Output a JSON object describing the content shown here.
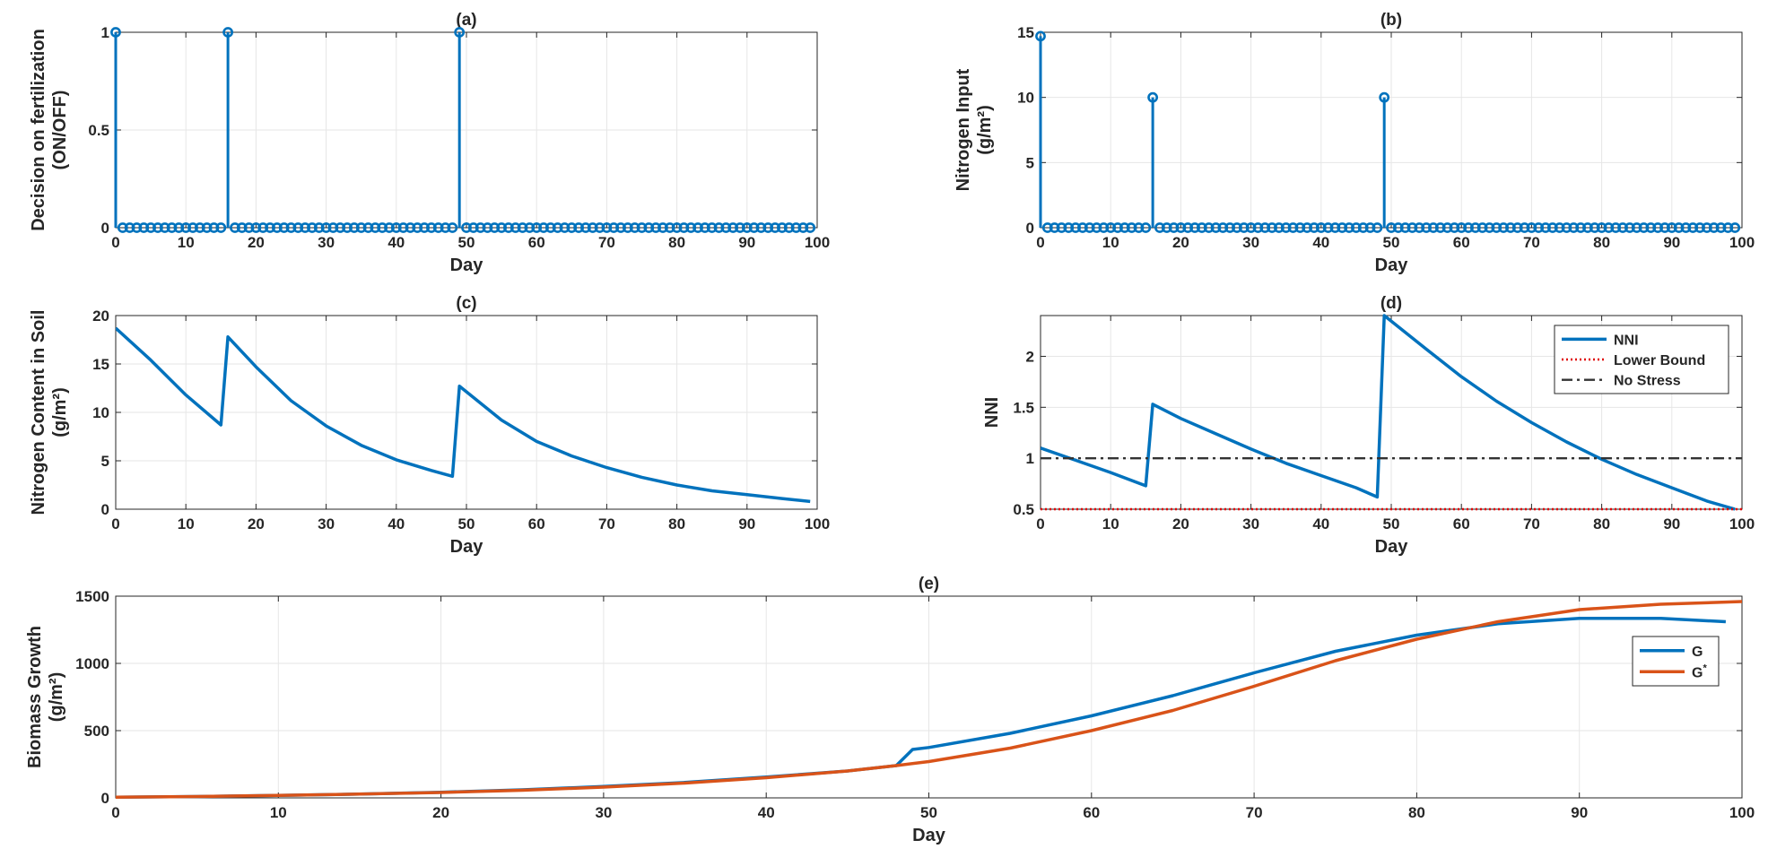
{
  "chart_data": [
    {
      "id": "a",
      "type": "stem",
      "title": "(a)",
      "xlabel": "Day",
      "ylabel": [
        "Decision on fertilization",
        "(ON/OFF)"
      ],
      "xlim": [
        0,
        100
      ],
      "ylim": [
        0,
        1
      ],
      "xticks": [
        0,
        10,
        20,
        30,
        40,
        50,
        60,
        70,
        80,
        90,
        100
      ],
      "yticks": [
        0,
        0.5,
        1
      ],
      "grid": true,
      "color": "#0072BD",
      "days": [
        0,
        1,
        2,
        3,
        4,
        5,
        6,
        7,
        8,
        9,
        10,
        11,
        12,
        13,
        14,
        15,
        16,
        17,
        18,
        19,
        20,
        21,
        22,
        23,
        24,
        25,
        26,
        27,
        28,
        29,
        30,
        31,
        32,
        33,
        34,
        35,
        36,
        37,
        38,
        39,
        40,
        41,
        42,
        43,
        44,
        45,
        46,
        47,
        48,
        49,
        50,
        51,
        52,
        53,
        54,
        55,
        56,
        57,
        58,
        59,
        60,
        61,
        62,
        63,
        64,
        65,
        66,
        67,
        68,
        69,
        70,
        71,
        72,
        73,
        74,
        75,
        76,
        77,
        78,
        79,
        80,
        81,
        82,
        83,
        84,
        85,
        86,
        87,
        88,
        89,
        90,
        91,
        92,
        93,
        94,
        95,
        96,
        97,
        98,
        99
      ],
      "spikes": [
        {
          "day": 0,
          "value": 1
        },
        {
          "day": 16,
          "value": 1
        },
        {
          "day": 49,
          "value": 1
        }
      ],
      "default_value": 0
    },
    {
      "id": "b",
      "type": "stem",
      "title": "(b)",
      "xlabel": "Day",
      "ylabel": [
        "Nitrogen Input",
        "(g/m²)"
      ],
      "xlim": [
        0,
        100
      ],
      "ylim": [
        0,
        15
      ],
      "xticks": [
        0,
        10,
        20,
        30,
        40,
        50,
        60,
        70,
        80,
        90,
        100
      ],
      "yticks": [
        0,
        5,
        10,
        15
      ],
      "grid": true,
      "color": "#0072BD",
      "days": [
        0,
        1,
        2,
        3,
        4,
        5,
        6,
        7,
        8,
        9,
        10,
        11,
        12,
        13,
        14,
        15,
        16,
        17,
        18,
        19,
        20,
        21,
        22,
        23,
        24,
        25,
        26,
        27,
        28,
        29,
        30,
        31,
        32,
        33,
        34,
        35,
        36,
        37,
        38,
        39,
        40,
        41,
        42,
        43,
        44,
        45,
        46,
        47,
        48,
        49,
        50,
        51,
        52,
        53,
        54,
        55,
        56,
        57,
        58,
        59,
        60,
        61,
        62,
        63,
        64,
        65,
        66,
        67,
        68,
        69,
        70,
        71,
        72,
        73,
        74,
        75,
        76,
        77,
        78,
        79,
        80,
        81,
        82,
        83,
        84,
        85,
        86,
        87,
        88,
        89,
        90,
        91,
        92,
        93,
        94,
        95,
        96,
        97,
        98,
        99
      ],
      "spikes": [
        {
          "day": 0,
          "value": 14.7
        },
        {
          "day": 16,
          "value": 10
        },
        {
          "day": 49,
          "value": 10
        }
      ],
      "default_value": 0
    },
    {
      "id": "c",
      "type": "line",
      "title": "(c)",
      "xlabel": "Day",
      "ylabel": [
        "Nitrogen Content in Soil",
        "(g/m²)"
      ],
      "xlim": [
        0,
        100
      ],
      "ylim": [
        0,
        20
      ],
      "xticks": [
        0,
        10,
        20,
        30,
        40,
        50,
        60,
        70,
        80,
        90,
        100
      ],
      "yticks": [
        0,
        5,
        10,
        15,
        20
      ],
      "grid": true,
      "series": [
        {
          "name": "Nitrogen Content",
          "color": "#0072BD",
          "x": [
            0,
            5,
            10,
            15,
            16,
            20,
            25,
            30,
            35,
            40,
            45,
            48,
            49,
            55,
            60,
            65,
            70,
            75,
            80,
            85,
            90,
            95,
            99
          ],
          "y": [
            18.7,
            15.4,
            11.8,
            8.7,
            17.8,
            14.7,
            11.2,
            8.6,
            6.6,
            5.1,
            4.0,
            3.4,
            12.7,
            9.2,
            7.0,
            5.5,
            4.3,
            3.3,
            2.5,
            1.9,
            1.5,
            1.1,
            0.8
          ]
        }
      ]
    },
    {
      "id": "d",
      "type": "line",
      "title": "(d)",
      "xlabel": "Day",
      "ylabel": [
        "NNI"
      ],
      "xlim": [
        0,
        100
      ],
      "ylim": [
        0.5,
        2.4
      ],
      "xticks": [
        0,
        10,
        20,
        30,
        40,
        50,
        60,
        70,
        80,
        90,
        100
      ],
      "yticks": [
        0.5,
        1,
        1.5,
        2
      ],
      "grid": true,
      "legend": "top-right",
      "series": [
        {
          "name": "NNI",
          "color": "#0072BD",
          "style": "solid",
          "x": [
            0,
            5,
            10,
            15,
            16,
            20,
            25,
            30,
            35,
            40,
            45,
            48,
            49,
            55,
            60,
            65,
            70,
            75,
            80,
            85,
            90,
            95,
            99
          ],
          "y": [
            1.1,
            0.98,
            0.86,
            0.73,
            1.53,
            1.39,
            1.24,
            1.09,
            0.95,
            0.83,
            0.71,
            0.62,
            2.4,
            2.07,
            1.8,
            1.56,
            1.35,
            1.16,
            0.99,
            0.84,
            0.71,
            0.58,
            0.5
          ]
        },
        {
          "name": "Lower Bound",
          "color": "#E00000",
          "style": "dotted",
          "x": [
            0,
            100
          ],
          "y": [
            0.5,
            0.5
          ]
        },
        {
          "name": "No Stress",
          "color": "#333333",
          "style": "dashdot",
          "x": [
            0,
            100
          ],
          "y": [
            1,
            1
          ]
        }
      ]
    },
    {
      "id": "e",
      "type": "line",
      "title": "(e)",
      "xlabel": "Day",
      "ylabel": [
        "Biomass Growth",
        "(g/m²)"
      ],
      "xlim": [
        0,
        100
      ],
      "ylim": [
        0,
        1500
      ],
      "xticks": [
        0,
        10,
        20,
        30,
        40,
        50,
        60,
        70,
        80,
        90,
        100
      ],
      "yticks": [
        0,
        500,
        1000,
        1500
      ],
      "grid": true,
      "legend": "right",
      "series": [
        {
          "name": "G",
          "color": "#0072BD",
          "x": [
            0,
            5,
            10,
            15,
            20,
            25,
            30,
            35,
            40,
            45,
            48,
            49,
            50,
            55,
            60,
            65,
            70,
            75,
            80,
            85,
            90,
            95,
            99
          ],
          "y": [
            5,
            10,
            18,
            28,
            42,
            60,
            85,
            115,
            155,
            200,
            240,
            360,
            375,
            480,
            610,
            760,
            930,
            1090,
            1210,
            1295,
            1335,
            1335,
            1310
          ]
        },
        {
          "name": "G*",
          "color": "#D95319",
          "x": [
            0,
            5,
            10,
            15,
            20,
            25,
            30,
            35,
            40,
            45,
            48,
            50,
            55,
            60,
            65,
            70,
            75,
            80,
            85,
            90,
            95,
            100
          ],
          "y": [
            5,
            10,
            18,
            28,
            40,
            57,
            80,
            110,
            150,
            200,
            240,
            270,
            370,
            500,
            650,
            830,
            1020,
            1180,
            1310,
            1400,
            1440,
            1460
          ]
        }
      ]
    }
  ]
}
